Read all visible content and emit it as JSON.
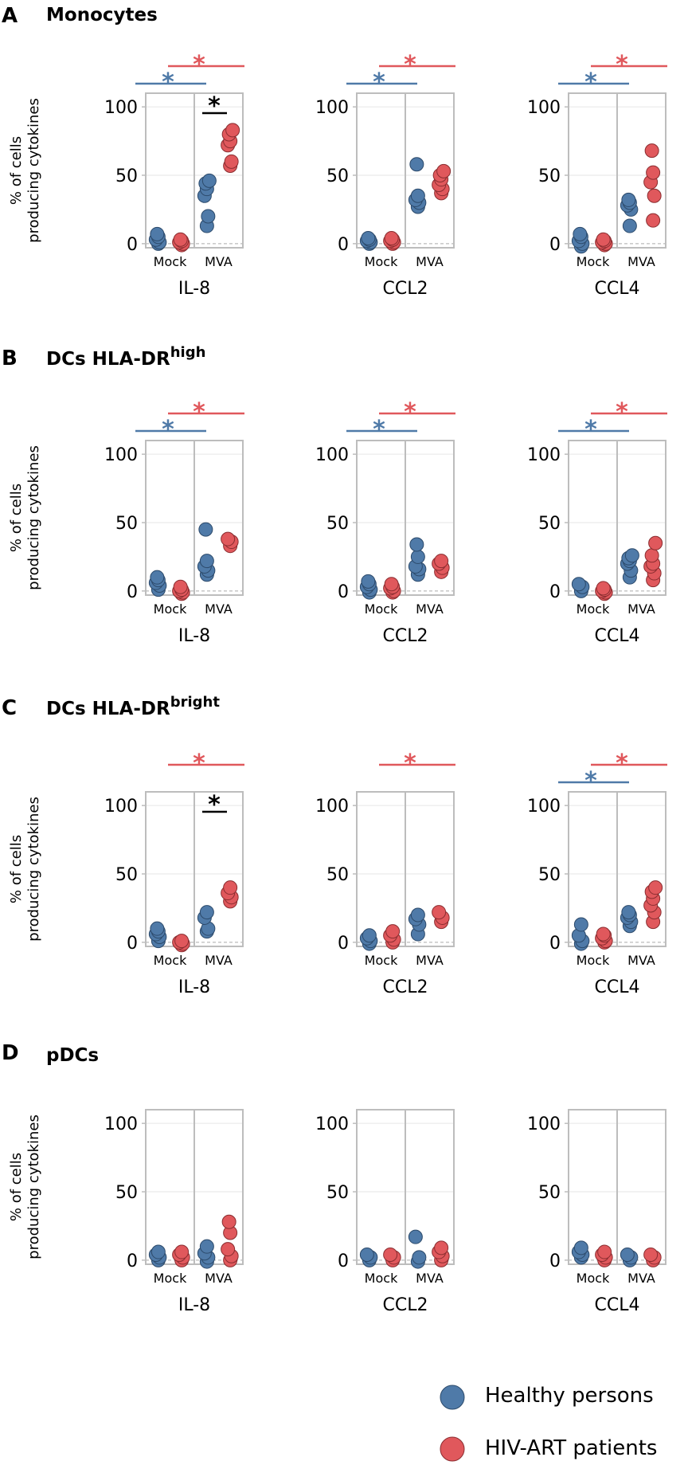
{
  "colors": {
    "healthy": "#4f7aa8",
    "hiv": "#e0585c",
    "black": "#000000"
  },
  "legend": {
    "healthy_label": "Healthy persons",
    "hiv_label": "HIV-ART patients"
  },
  "y_axis_label_1": "% of cells",
  "y_axis_label_2": "producing cytokines",
  "chart_data": [
    {
      "letter": "A",
      "title": "Monocytes",
      "title_sup": "",
      "type": "scatter",
      "ylim": [
        -3,
        110
      ],
      "yticks": [
        0,
        50,
        100
      ],
      "categories": [
        "Mock",
        "MVA"
      ],
      "subplots": [
        {
          "cytokine": "IL-8",
          "healthy_mock": [
            0,
            1,
            3,
            5,
            7
          ],
          "hiv_mock": [
            -1,
            0,
            1,
            2,
            3
          ],
          "healthy_mva": [
            13,
            20,
            35,
            40,
            44,
            46
          ],
          "hiv_mva": [
            57,
            60,
            72,
            75,
            80,
            83
          ],
          "sig": {
            "blue": true,
            "red": true,
            "black": true
          }
        },
        {
          "cytokine": "CCL2",
          "healthy_mock": [
            0,
            1,
            2,
            3,
            4
          ],
          "hiv_mock": [
            0,
            1,
            2,
            3,
            4
          ],
          "healthy_mva": [
            27,
            30,
            32,
            35,
            58
          ],
          "hiv_mva": [
            37,
            40,
            43,
            47,
            50,
            53
          ],
          "sig": {
            "blue": true,
            "red": true,
            "black": false
          }
        },
        {
          "cytokine": "CCL4",
          "healthy_mock": [
            -2,
            0,
            2,
            5,
            7
          ],
          "hiv_mock": [
            -1,
            0,
            1,
            2,
            3
          ],
          "healthy_mva": [
            13,
            25,
            28,
            30,
            32
          ],
          "hiv_mva": [
            17,
            35,
            45,
            52,
            68
          ],
          "sig": {
            "blue": true,
            "red": true,
            "black": false
          }
        }
      ]
    },
    {
      "letter": "B",
      "title": "DCs HLA-DR",
      "title_sup": "high",
      "type": "scatter",
      "ylim": [
        -3,
        110
      ],
      "yticks": [
        0,
        50,
        100
      ],
      "categories": [
        "Mock",
        "MVA"
      ],
      "subplots": [
        {
          "cytokine": "IL-8",
          "healthy_mock": [
            1,
            4,
            6,
            8,
            10
          ],
          "hiv_mock": [
            -2,
            -1,
            0,
            1,
            3
          ],
          "healthy_mva": [
            12,
            15,
            18,
            22,
            45
          ],
          "hiv_mva": [
            33,
            36,
            38
          ],
          "sig": {
            "blue": true,
            "red": true,
            "black": false
          }
        },
        {
          "cytokine": "CCL2",
          "healthy_mock": [
            -1,
            1,
            3,
            5,
            7
          ],
          "hiv_mock": [
            -1,
            0,
            2,
            3,
            5
          ],
          "healthy_mva": [
            12,
            16,
            18,
            25,
            34
          ],
          "hiv_mva": [
            14,
            17,
            20,
            22
          ],
          "sig": {
            "blue": true,
            "red": true,
            "black": false
          }
        },
        {
          "cytokine": "CCL4",
          "healthy_mock": [
            0,
            3,
            5
          ],
          "hiv_mock": [
            -2,
            -1,
            0,
            1,
            2
          ],
          "healthy_mva": [
            10,
            15,
            20,
            22,
            24,
            26
          ],
          "hiv_mva": [
            8,
            13,
            18,
            20,
            26,
            35
          ],
          "sig": {
            "blue": true,
            "red": true,
            "black": false
          }
        }
      ]
    },
    {
      "letter": "C",
      "title": "DCs HLA-DR",
      "title_sup": "bright",
      "type": "scatter",
      "ylim": [
        -3,
        110
      ],
      "yticks": [
        0,
        50,
        100
      ],
      "categories": [
        "Mock",
        "MVA"
      ],
      "subplots": [
        {
          "cytokine": "IL-8",
          "healthy_mock": [
            1,
            4,
            6,
            8,
            10
          ],
          "hiv_mock": [
            -2,
            -1,
            0,
            1
          ],
          "healthy_mva": [
            8,
            10,
            18,
            22
          ],
          "hiv_mva": [
            30,
            33,
            36,
            40
          ],
          "sig": {
            "blue": false,
            "red": true,
            "black": true
          }
        },
        {
          "cytokine": "CCL2",
          "healthy_mock": [
            -1,
            1,
            3,
            5
          ],
          "hiv_mock": [
            0,
            2,
            5,
            8
          ],
          "healthy_mva": [
            6,
            13,
            17,
            20
          ],
          "hiv_mva": [
            15,
            18,
            22
          ],
          "sig": {
            "blue": false,
            "red": true,
            "black": false
          }
        },
        {
          "cytokine": "CCL4",
          "healthy_mock": [
            -1,
            1,
            5,
            13
          ],
          "hiv_mock": [
            0,
            1,
            3,
            5,
            6
          ],
          "healthy_mva": [
            12,
            15,
            18,
            20,
            22
          ],
          "hiv_mva": [
            15,
            22,
            27,
            32,
            37,
            40
          ],
          "sig": {
            "blue": true,
            "red": true,
            "black": false
          }
        }
      ]
    },
    {
      "letter": "D",
      "title": "pDCs",
      "title_sup": "",
      "type": "scatter",
      "ylim": [
        -3,
        110
      ],
      "yticks": [
        0,
        50,
        100
      ],
      "categories": [
        "Mock",
        "MVA"
      ],
      "subplots": [
        {
          "cytokine": "IL-8",
          "healthy_mock": [
            0,
            2,
            4,
            6
          ],
          "hiv_mock": [
            0,
            2,
            4,
            6
          ],
          "healthy_mva": [
            -1,
            2,
            5,
            10
          ],
          "hiv_mva": [
            0,
            3,
            8,
            20,
            28
          ],
          "sig": {
            "blue": false,
            "red": false,
            "black": false
          }
        },
        {
          "cytokine": "CCL2",
          "healthy_mock": [
            0,
            2,
            4
          ],
          "hiv_mock": [
            0,
            2,
            4
          ],
          "healthy_mva": [
            -1,
            2,
            17
          ],
          "hiv_mva": [
            0,
            3,
            6,
            9
          ],
          "sig": {
            "blue": false,
            "red": false,
            "black": false
          }
        },
        {
          "cytokine": "CCL4",
          "healthy_mock": [
            2,
            4,
            6,
            9
          ],
          "hiv_mock": [
            0,
            2,
            4,
            6
          ],
          "healthy_mva": [
            0,
            2,
            4
          ],
          "hiv_mva": [
            0,
            2,
            4
          ],
          "sig": {
            "blue": false,
            "red": false,
            "black": false
          }
        }
      ]
    }
  ]
}
